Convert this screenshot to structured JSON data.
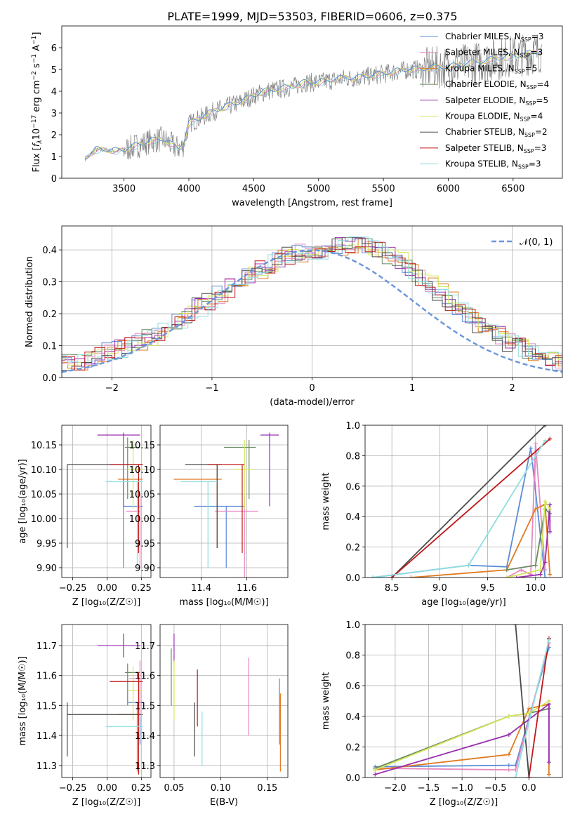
{
  "figure_title": "PLATE=1999, MJD=53503, FIBERID=0606, z=0.375",
  "colors": {
    "Chabrier MILES": "#5b8bd6",
    "Salpeter MILES": "#e887c0",
    "Kroupa MILES": "#e07b22",
    "Chabrier ELODIE": "#6a8a62",
    "Salpeter ELODIE": "#9b30b0",
    "Kroupa ELODIE": "#d4e85a",
    "Chabrier STELIB": "#4a4a4a",
    "Salpeter STELIB": "#c01818",
    "Kroupa STELIB": "#8fdde0",
    "data": "#808080",
    "gaussian": "#6a95dc"
  },
  "chart_data": [
    {
      "id": "spectrum",
      "type": "line",
      "xlabel": "wavelength [Angstrom, rest frame]",
      "ylabel_main": "Flux [",
      "ylabel_f": "f",
      "ylabel_lambda": "λ",
      "ylabel_ten": "10",
      "ylabel_exp": "−17",
      "ylabel_units": " erg cm",
      "ylabel_exp2": "−2",
      "ylabel_s": " s",
      "ylabel_exp3": "−1",
      "ylabel_a": " A",
      "ylabel_exp4": "−1",
      "ylabel_end": "]",
      "xlim": [
        3020,
        6880
      ],
      "ylim": [
        0,
        7
      ],
      "xticks": [
        3500,
        4000,
        4500,
        5000,
        5500,
        6000,
        6500
      ],
      "yticks": [
        0,
        1,
        2,
        3,
        4,
        5,
        6
      ],
      "continuum": {
        "x": [
          3200,
          3280,
          3350,
          3450,
          3500,
          3600,
          3700,
          3800,
          3900,
          3950,
          4000,
          4100,
          4200,
          4300,
          4400,
          4500,
          4600,
          4700,
          4800,
          4900,
          5000,
          5100,
          5200,
          5300,
          5400,
          5500,
          5600,
          5700,
          5800,
          5900,
          6000,
          6100,
          6200,
          6300,
          6400,
          6500,
          6600,
          6700
        ],
        "y": [
          0.9,
          1.3,
          1.3,
          1.25,
          1.3,
          1.5,
          1.7,
          1.8,
          1.4,
          1.4,
          2.5,
          2.8,
          3.1,
          3.3,
          3.5,
          3.8,
          4.0,
          4.1,
          4.2,
          4.4,
          4.4,
          4.5,
          4.6,
          4.6,
          4.7,
          4.8,
          4.9,
          5.0,
          5.0,
          5.1,
          5.1,
          5.2,
          5.3,
          5.4,
          5.5,
          5.6,
          5.7,
          5.8
        ]
      },
      "legend": [
        {
          "name": "Chabrier MILES",
          "n": "3"
        },
        {
          "name": "Salpeter MILES",
          "n": "3"
        },
        {
          "name": "Kroupa MILES",
          "n": "5"
        },
        {
          "name": "Chabrier ELODIE",
          "n": "4"
        },
        {
          "name": "Salpeter ELODIE",
          "n": "5"
        },
        {
          "name": "Kroupa ELODIE",
          "n": "4"
        },
        {
          "name": "Chabrier STELIB",
          "n": "2"
        },
        {
          "name": "Salpeter STELIB",
          "n": "3"
        },
        {
          "name": "Kroupa STELIB",
          "n": "3"
        }
      ],
      "legend_n_label": "N",
      "legend_n_sub": "SSP"
    },
    {
      "id": "residuals",
      "type": "histogram",
      "xlabel": "(data-model)/error",
      "ylabel": "Normed distribution",
      "xlim": [
        -2.5,
        2.5
      ],
      "ylim": [
        0,
        0.475
      ],
      "xticks": [
        -2,
        -1,
        0,
        1,
        2
      ],
      "yticks": [
        0,
        0.1,
        0.2,
        0.3,
        0.4
      ],
      "legend": "𝒩(0, 1)",
      "bin_width": 0.1,
      "envelope": [
        0.02,
        0.025,
        0.03,
        0.035,
        0.04,
        0.045,
        0.05,
        0.06,
        0.07,
        0.08,
        0.09,
        0.1,
        0.115,
        0.13,
        0.145,
        0.16,
        0.18,
        0.2,
        0.22,
        0.24,
        0.26,
        0.28,
        0.3,
        0.32,
        0.34,
        0.355,
        0.37,
        0.38,
        0.39,
        0.395,
        0.4,
        0.405,
        0.41,
        0.415,
        0.415,
        0.41,
        0.4,
        0.385,
        0.365,
        0.34,
        0.315,
        0.29,
        0.265,
        0.24,
        0.215,
        0.19,
        0.17,
        0.15,
        0.13,
        0.11,
        0.095,
        0.08,
        0.065,
        0.055,
        0.045,
        0.038,
        0.032,
        0.028,
        0.025,
        0.022
      ]
    },
    {
      "id": "age_vs_Z",
      "type": "errorbar",
      "xlabel": "Z [log₁₀(Z/Z☉)]",
      "ylabel": "age  [log₁₀(age/yr)]",
      "xlim": [
        -0.33,
        0.32
      ],
      "ylim": [
        9.88,
        10.19
      ],
      "xticks": [
        -0.25,
        0.0,
        0.25
      ],
      "xticklabels": [
        "−0.25",
        "0.00",
        "0.25"
      ],
      "yticks": [
        9.9,
        9.95,
        10.0,
        10.05,
        10.1,
        10.15
      ],
      "yticklabels": [
        "9.90",
        "9.95",
        "10.00",
        "10.05",
        "10.10",
        "10.15"
      ],
      "points": [
        {
          "model": "Chabrier MILES",
          "x": 0.12,
          "y": 10.025,
          "xlo": 0.12,
          "xhi": 0.26,
          "ylo": 9.9,
          "yhi": 10.025
        },
        {
          "model": "Salpeter MILES",
          "x": 0.24,
          "y": 10.015,
          "xlo": 0.14,
          "xhi": 0.24,
          "ylo": 9.9,
          "yhi": 10.05
        },
        {
          "model": "Kroupa MILES",
          "x": 0.23,
          "y": 10.08,
          "xlo": 0.08,
          "xhi": 0.26,
          "ylo": 9.94,
          "yhi": 10.08
        },
        {
          "model": "Chabrier ELODIE",
          "x": 0.15,
          "y": 10.145,
          "xlo": 0.13,
          "xhi": 0.24,
          "ylo": 10.04,
          "yhi": 10.165
        },
        {
          "model": "Salpeter ELODIE",
          "x": 0.12,
          "y": 10.17,
          "xlo": -0.07,
          "xhi": 0.24,
          "ylo": 10.025,
          "yhi": 10.175
        },
        {
          "model": "Kroupa ELODIE",
          "x": 0.19,
          "y": 10.1,
          "xlo": 0.15,
          "xhi": 0.26,
          "ylo": 10.02,
          "yhi": 10.16
        },
        {
          "model": "Chabrier STELIB",
          "x": -0.29,
          "y": 10.11,
          "xlo": -0.29,
          "xhi": 0.26,
          "ylo": 9.94,
          "yhi": 10.11
        },
        {
          "model": "Salpeter STELIB",
          "x": 0.23,
          "y": 10.11,
          "xlo": 0.02,
          "xhi": 0.26,
          "ylo": 9.93,
          "yhi": 10.11
        },
        {
          "model": "Kroupa STELIB",
          "x": 0.22,
          "y": 10.075,
          "xlo": -0.01,
          "xhi": 0.26,
          "ylo": 9.9,
          "yhi": 10.075
        }
      ]
    },
    {
      "id": "age_vs_mass",
      "type": "errorbar",
      "xlabel": "mass [log₁₀(M/M☉)]",
      "ylabel": "",
      "xlim": [
        11.22,
        11.78
      ],
      "ylim": [
        9.88,
        10.19
      ],
      "xticks": [
        11.4,
        11.6
      ],
      "xticklabels": [
        "11.4",
        "11.6"
      ],
      "yticks": [
        9.9,
        9.95,
        10.0,
        10.05,
        10.1,
        10.15
      ],
      "yticklabels": [
        "9.90",
        "9.95",
        "10.00",
        "10.05",
        "10.10",
        "10.15"
      ],
      "points": [
        {
          "model": "Chabrier MILES",
          "x": 11.51,
          "y": 10.025,
          "xlo": 11.37,
          "xhi": 11.59,
          "ylo": 9.9,
          "yhi": 10.025
        },
        {
          "model": "Salpeter MILES",
          "x": 11.59,
          "y": 10.015,
          "xlo": 11.46,
          "xhi": 11.65,
          "ylo": 9.88,
          "yhi": 10.05
        },
        {
          "model": "Kroupa MILES",
          "x": 11.47,
          "y": 10.08,
          "xlo": 11.28,
          "xhi": 11.49,
          "ylo": 9.94,
          "yhi": 10.11
        },
        {
          "model": "Chabrier ELODIE",
          "x": 11.61,
          "y": 10.145,
          "xlo": 11.5,
          "xhi": 11.64,
          "ylo": 10.04,
          "yhi": 10.16
        },
        {
          "model": "Salpeter ELODIE",
          "x": 11.7,
          "y": 10.17,
          "xlo": 11.66,
          "xhi": 11.74,
          "ylo": 10.025,
          "yhi": 10.175
        },
        {
          "model": "Kroupa ELODIE",
          "x": 11.59,
          "y": 10.1,
          "xlo": 11.54,
          "xhi": 11.63,
          "ylo": 10.02,
          "yhi": 10.16
        },
        {
          "model": "Chabrier STELIB",
          "x": 11.47,
          "y": 10.11,
          "xlo": 11.33,
          "xhi": 11.49,
          "ylo": 9.94,
          "yhi": 10.11
        },
        {
          "model": "Salpeter STELIB",
          "x": 11.58,
          "y": 10.11,
          "xlo": 11.43,
          "xhi": 11.59,
          "ylo": 9.93,
          "yhi": 10.11
        },
        {
          "model": "Kroupa STELIB",
          "x": 11.43,
          "y": 10.075,
          "xlo": 11.31,
          "xhi": 11.47,
          "ylo": 9.9,
          "yhi": 10.075
        }
      ]
    },
    {
      "id": "mass_weight_vs_age",
      "type": "line",
      "xlabel": "age  [log₁₀(age/yr)]",
      "ylabel": "mass weight",
      "xlim": [
        8.22,
        10.28
      ],
      "ylim": [
        0,
        1
      ],
      "xticks": [
        8.5,
        9.0,
        9.5,
        10.0
      ],
      "xticklabels": [
        "8.5",
        "9.0",
        "9.5",
        "10.0"
      ],
      "yticks": [
        0,
        0.2,
        0.4,
        0.6,
        0.8,
        1.0
      ],
      "yticklabels": [
        "0.0",
        "0.2",
        "0.4",
        "0.6",
        "0.8",
        "1.0"
      ],
      "series": [
        {
          "model": "Chabrier MILES",
          "x": [
            8.3,
            9.3,
            9.7,
            9.95,
            10.1
          ],
          "y": [
            0.0,
            0.08,
            0.07,
            0.85,
            0.0
          ]
        },
        {
          "model": "Salpeter MILES",
          "x": [
            9.7,
            9.85,
            9.95,
            10.0,
            10.1
          ],
          "y": [
            0.0,
            0.05,
            0.02,
            0.88,
            0.05
          ]
        },
        {
          "model": "Kroupa MILES",
          "x": [
            8.7,
            9.7,
            10.0,
            10.1,
            10.15
          ],
          "y": [
            0.0,
            0.05,
            0.45,
            0.48,
            0.02
          ]
        },
        {
          "model": "Chabrier ELODIE",
          "x": [
            9.7,
            10.0,
            10.1,
            10.15
          ],
          "y": [
            0.05,
            0.08,
            0.45,
            0.42
          ]
        },
        {
          "model": "Salpeter ELODIE",
          "x": [
            9.8,
            10.05,
            10.1,
            10.15,
            10.15
          ],
          "y": [
            0.0,
            0.02,
            0.1,
            0.48,
            0.3
          ]
        },
        {
          "model": "Kroupa ELODIE",
          "x": [
            9.7,
            10.05,
            10.1,
            10.15
          ],
          "y": [
            0.0,
            0.05,
            0.5,
            0.45
          ]
        },
        {
          "model": "Chabrier STELIB",
          "x": [
            8.5,
            10.1
          ],
          "y": [
            0.0,
            1.0
          ]
        },
        {
          "model": "Salpeter STELIB",
          "x": [
            8.5,
            10.15
          ],
          "y": [
            0.0,
            0.91
          ]
        },
        {
          "model": "Kroupa STELIB",
          "x": [
            8.3,
            9.3,
            10.1
          ],
          "y": [
            0.0,
            0.08,
            0.9
          ]
        }
      ]
    },
    {
      "id": "mass_vs_Z",
      "type": "errorbar",
      "xlabel": "Z [log₁₀(Z/Z☉)]",
      "ylabel": "mass [log₁₀(M/M☉)]",
      "xlim": [
        -0.33,
        0.32
      ],
      "ylim": [
        11.26,
        11.77
      ],
      "xticks": [
        -0.25,
        0.0,
        0.25
      ],
      "xticklabels": [
        "−0.25",
        "0.00",
        "0.25"
      ],
      "yticks": [
        11.3,
        11.4,
        11.5,
        11.6,
        11.7
      ],
      "yticklabels": [
        "11.3",
        "11.4",
        "11.5",
        "11.6",
        "11.7"
      ],
      "points": [
        {
          "model": "Chabrier MILES",
          "x": 0.24,
          "y": 11.51,
          "xlo": 0.15,
          "xhi": 0.26,
          "ylo": 11.37,
          "yhi": 11.59
        },
        {
          "model": "Salpeter MILES",
          "x": 0.24,
          "y": 11.59,
          "xlo": 0.16,
          "xhi": 0.26,
          "ylo": 11.46,
          "yhi": 11.65
        },
        {
          "model": "Kroupa MILES",
          "x": 0.22,
          "y": 11.47,
          "xlo": 0.08,
          "xhi": 0.26,
          "ylo": 11.28,
          "yhi": 11.49
        },
        {
          "model": "Chabrier ELODIE",
          "x": 0.15,
          "y": 11.61,
          "xlo": 0.13,
          "xhi": 0.24,
          "ylo": 11.5,
          "yhi": 11.64
        },
        {
          "model": "Salpeter ELODIE",
          "x": 0.12,
          "y": 11.7,
          "xlo": -0.07,
          "xhi": 0.24,
          "ylo": 11.66,
          "yhi": 11.74
        },
        {
          "model": "Kroupa ELODIE",
          "x": 0.19,
          "y": 11.55,
          "xlo": 0.15,
          "xhi": 0.26,
          "ylo": 11.45,
          "yhi": 11.63
        },
        {
          "model": "Chabrier STELIB",
          "x": -0.29,
          "y": 11.47,
          "xlo": -0.29,
          "xhi": 0.26,
          "ylo": 11.33,
          "yhi": 11.51
        },
        {
          "model": "Salpeter STELIB",
          "x": 0.23,
          "y": 11.58,
          "xlo": 0.02,
          "xhi": 0.26,
          "ylo": 11.27,
          "yhi": 11.61
        },
        {
          "model": "Kroupa STELIB",
          "x": 0.25,
          "y": 11.43,
          "xlo": -0.01,
          "xhi": 0.26,
          "ylo": 11.3,
          "yhi": 11.47
        }
      ]
    },
    {
      "id": "mass_vs_ebv",
      "type": "errorbar",
      "xlabel": "E(B-V)",
      "ylabel": "",
      "xlim": [
        0.035,
        0.172
      ],
      "ylim": [
        11.26,
        11.77
      ],
      "xticks": [
        0.05,
        0.1,
        0.15
      ],
      "xticklabels": [
        "0.05",
        "0.10",
        "0.15"
      ],
      "yticks": [
        11.3,
        11.4,
        11.5,
        11.6,
        11.7
      ],
      "yticklabels": [
        "11.3",
        "11.4",
        "11.5",
        "11.6",
        "11.7"
      ],
      "points": [
        {
          "model": "Chabrier MILES",
          "x": 0.163,
          "y": 11.51,
          "ylo": 11.37,
          "yhi": 11.59
        },
        {
          "model": "Salpeter MILES",
          "x": 0.13,
          "y": 11.55,
          "ylo": 11.4,
          "yhi": 11.66
        },
        {
          "model": "Kroupa MILES",
          "x": 0.164,
          "y": 11.4,
          "ylo": 11.28,
          "yhi": 11.54
        },
        {
          "model": "Chabrier ELODIE",
          "x": 0.047,
          "y": 11.6,
          "ylo": 11.5,
          "yhi": 11.69
        },
        {
          "model": "Salpeter ELODIE",
          "x": 0.05,
          "y": 11.7,
          "ylo": 11.64,
          "yhi": 11.74
        },
        {
          "model": "Kroupa ELODIE",
          "x": 0.05,
          "y": 11.55,
          "ylo": 11.45,
          "yhi": 11.65
        },
        {
          "model": "Chabrier STELIB",
          "x": 0.072,
          "y": 11.45,
          "ylo": 11.33,
          "yhi": 11.51
        },
        {
          "model": "Salpeter STELIB",
          "x": 0.075,
          "y": 11.55,
          "ylo": 11.43,
          "yhi": 11.62
        },
        {
          "model": "Kroupa STELIB",
          "x": 0.08,
          "y": 11.4,
          "ylo": 11.3,
          "yhi": 11.48
        }
      ]
    },
    {
      "id": "mass_weight_vs_Z",
      "type": "line",
      "xlabel": "Z [log₁₀(Z/Z☉)]",
      "ylabel": "mass weight",
      "xlim": [
        -2.45,
        0.5
      ],
      "ylim": [
        0,
        1
      ],
      "xticks": [
        -2.0,
        -1.5,
        -1.0,
        -0.5,
        0.0
      ],
      "xticklabels": [
        "−2.0",
        "−1.5",
        "−1.0",
        "−0.5",
        "0.0"
      ],
      "yticks": [
        0,
        0.2,
        0.4,
        0.6,
        0.8,
        1.0
      ],
      "yticklabels": [
        "0.0",
        "0.2",
        "0.4",
        "0.6",
        "0.8",
        "1.0"
      ],
      "series": [
        {
          "model": "Chabrier MILES",
          "x": [
            -2.3,
            -0.3,
            -0.2,
            0.3
          ],
          "y": [
            0.07,
            0.08,
            0.08,
            0.85
          ]
        },
        {
          "model": "Salpeter MILES",
          "x": [
            -2.3,
            -0.3,
            -0.2,
            0.3
          ],
          "y": [
            0.06,
            0.05,
            0.05,
            0.88
          ]
        },
        {
          "model": "Kroupa MILES",
          "x": [
            -2.3,
            -0.3,
            0.0,
            0.3,
            0.3
          ],
          "y": [
            0.05,
            0.15,
            0.45,
            0.48,
            0.02
          ]
        },
        {
          "model": "Chabrier ELODIE",
          "x": [
            -2.3,
            -0.3,
            0.0,
            0.3
          ],
          "y": [
            0.06,
            0.4,
            0.42,
            0.45
          ]
        },
        {
          "model": "Salpeter ELODIE",
          "x": [
            -2.3,
            -0.3,
            0.3,
            0.3
          ],
          "y": [
            0.02,
            0.28,
            0.48,
            0.1
          ]
        },
        {
          "model": "Kroupa ELODIE",
          "x": [
            -2.3,
            -0.3,
            0.0,
            0.3
          ],
          "y": [
            0.05,
            0.4,
            0.42,
            0.5
          ]
        },
        {
          "model": "Chabrier STELIB",
          "x": [
            -0.2,
            0.0
          ],
          "y": [
            1.0,
            0.0
          ]
        },
        {
          "model": "Salpeter STELIB",
          "x": [
            0.0,
            0.3
          ],
          "y": [
            0.0,
            0.91
          ]
        },
        {
          "model": "Kroupa STELIB",
          "x": [
            -0.2,
            0.3
          ],
          "y": [
            0.0,
            0.9
          ]
        }
      ]
    }
  ]
}
